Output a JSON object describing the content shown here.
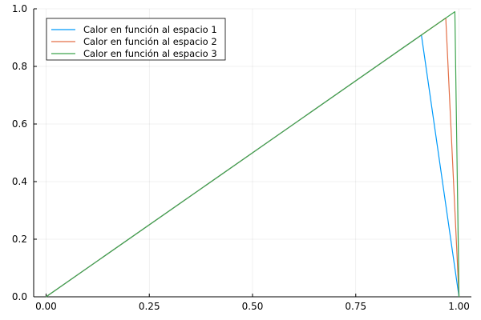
{
  "chart_data": {
    "type": "line",
    "title": "",
    "xlabel": "",
    "ylabel": "",
    "xlim": [
      -0.03,
      1.03
    ],
    "ylim": [
      0,
      1
    ],
    "grid": true,
    "legend_position": "top-left",
    "x_ticks": [
      0.0,
      0.25,
      0.5,
      0.75,
      1.0
    ],
    "x_tick_labels": [
      "0.00",
      "0.25",
      "0.50",
      "0.75",
      "1.00"
    ],
    "y_ticks": [
      0.0,
      0.2,
      0.4,
      0.6,
      0.8,
      1.0
    ],
    "y_tick_labels": [
      "0.0",
      "0.2",
      "0.4",
      "0.6",
      "0.8",
      "1.0"
    ],
    "series": [
      {
        "name": "Calor en función al espacio 1",
        "color": "#009AFA",
        "x": [
          0.0,
          0.909,
          1.0
        ],
        "y": [
          0.0,
          0.909,
          0.0
        ]
      },
      {
        "name": "Calor en función al espacio 2",
        "color": "#E36F47",
        "x": [
          0.0,
          0.968,
          1.0
        ],
        "y": [
          0.0,
          0.968,
          0.0
        ]
      },
      {
        "name": "Calor en función al espacio 3",
        "color": "#3EA44E",
        "x": [
          0.0,
          0.99,
          1.0
        ],
        "y": [
          0.0,
          0.99,
          0.0
        ]
      }
    ]
  }
}
